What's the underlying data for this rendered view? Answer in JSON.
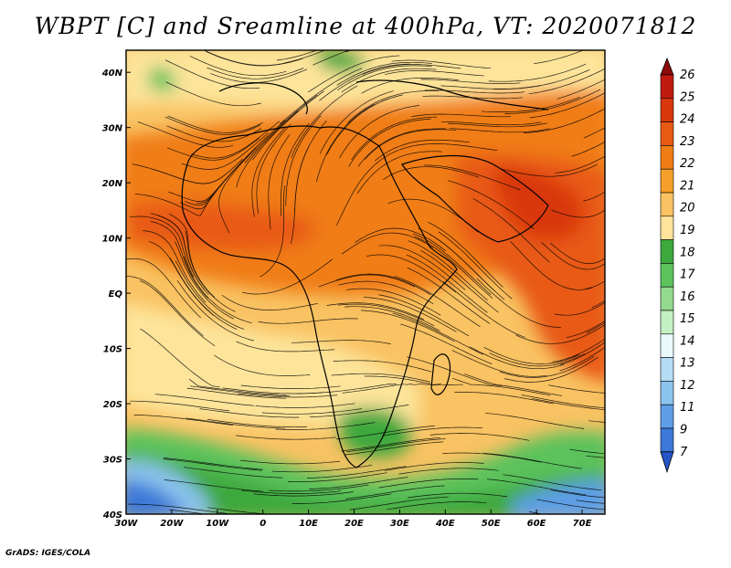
{
  "title": "WBPT [C] and Sreamline at 400hPa, VT: 2020071812",
  "credit": "GrADS: IGES/COLA",
  "map": {
    "lon_labels": [
      "30W",
      "20W",
      "10W",
      "0",
      "10E",
      "20E",
      "30E",
      "40E",
      "50E",
      "60E",
      "70E"
    ],
    "lat_labels": [
      "40N",
      "30N",
      "20N",
      "10N",
      "EQ",
      "10S",
      "20S",
      "30S",
      "40S"
    ],
    "lon_range": [
      -30,
      75
    ],
    "lat_range": [
      -40,
      44
    ]
  },
  "colorbar": {
    "levels": [
      "26",
      "25",
      "24",
      "23",
      "22",
      "21",
      "20",
      "19",
      "18",
      "17",
      "16",
      "15",
      "14",
      "13",
      "12",
      "11",
      "9",
      "7"
    ],
    "colors": [
      "#8c0a0a",
      "#bf1a0f",
      "#d9370d",
      "#e85a14",
      "#f07d14",
      "#f5a02a",
      "#f9c262",
      "#fde49a",
      "#3da83d",
      "#5cc25c",
      "#93d98e",
      "#c4efc2",
      "#e9f9fb",
      "#b5dcf5",
      "#8cc4ee",
      "#5d9ee6",
      "#3b78d8",
      "#2456c8"
    ]
  },
  "chart_data": {
    "type": "heatmap",
    "title": "WBPT [C] and Sreamline at 400hPa, VT: 2020071812",
    "xlabel": "",
    "ylabel": "",
    "xlim": [
      -30,
      75
    ],
    "ylim": [
      -40,
      44
    ],
    "x_ticks": [
      "30W",
      "20W",
      "10W",
      "0",
      "10E",
      "20E",
      "30E",
      "40E",
      "50E",
      "60E",
      "70E"
    ],
    "y_ticks": [
      "40N",
      "30N",
      "20N",
      "10N",
      "EQ",
      "10S",
      "20S",
      "30S",
      "40S"
    ],
    "colorbar_levels": [
      7,
      9,
      11,
      12,
      13,
      14,
      15,
      16,
      17,
      18,
      19,
      20,
      21,
      22,
      23,
      24,
      25,
      26
    ]
  }
}
